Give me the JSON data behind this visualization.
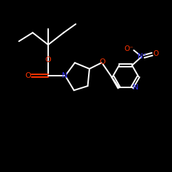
{
  "bg_color": "#000000",
  "bond_color": "#ffffff",
  "oxygen_color": "#ff3300",
  "nitrogen_color": "#3333ff",
  "line_width": 1.5,
  "figsize": [
    2.5,
    2.5
  ],
  "dpi": 100,
  "xlim": [
    0,
    10
  ],
  "ylim": [
    0,
    10
  ]
}
